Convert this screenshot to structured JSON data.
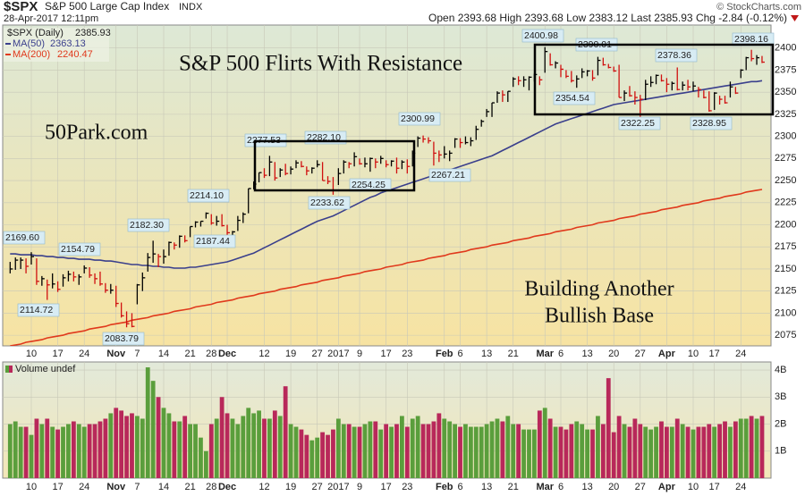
{
  "header": {
    "symbol": "$SPX",
    "name": "S&P 500 Large Cap Index",
    "exchange": "INDX",
    "source": "© StockCharts.com",
    "datetime": "28-Apr-2017 12:11pm",
    "quote": "Open 2393.68  High 2393.68  Low 2383.12  Last 2385.93  Chg -2.84 (-0.12%)"
  },
  "chart_data": [
    {
      "type": "ohlc",
      "legend_title": "$SPX (Daily)",
      "last": "2385.93",
      "up_color": "#000000",
      "down_color": "#d01010",
      "annotations": [
        "S&P 500 Flirts With Resistance",
        "50Park.com",
        "Building Another",
        "Bullish Base"
      ],
      "price_labels": [
        "2169.60",
        "2154.79",
        "2114.72",
        "2083.79",
        "2182.30",
        "2214.10",
        "2187.44",
        "2277.53",
        "2282.10",
        "2233.62",
        "2254.25",
        "2300.99",
        "2267.21",
        "2400.98",
        "2390.01",
        "2354.54",
        "2378.36",
        "2322.25",
        "2328.95",
        "2398.16"
      ],
      "categories": [
        null,
        null,
        null,
        null,
        "10",
        null,
        null,
        null,
        null,
        "17",
        null,
        null,
        null,
        null,
        "24",
        null,
        null,
        null,
        null,
        null,
        "Nov",
        null,
        null,
        null,
        "7",
        null,
        null,
        null,
        null,
        "14",
        null,
        null,
        null,
        null,
        "21",
        null,
        null,
        null,
        "28",
        null,
        null,
        "Dec",
        null,
        null,
        null,
        null,
        null,
        null,
        "12",
        null,
        null,
        null,
        null,
        "19",
        null,
        null,
        null,
        null,
        "27",
        null,
        null,
        null,
        "2017",
        null,
        null,
        null,
        "9",
        null,
        null,
        null,
        null,
        "17",
        null,
        null,
        null,
        "23",
        null,
        null,
        null,
        null,
        null,
        null,
        "Feb",
        null,
        null,
        "6",
        null,
        null,
        null,
        null,
        "13",
        null,
        null,
        null,
        null,
        "21",
        null,
        null,
        null,
        null,
        null,
        "Mar",
        null,
        null,
        "6",
        null,
        null,
        null,
        null,
        "13",
        null,
        null,
        null,
        null,
        "20",
        null,
        null,
        null,
        null,
        "27",
        null,
        null,
        null,
        null,
        "Apr",
        null,
        null,
        null,
        null,
        "10",
        null,
        null,
        null,
        "17",
        null,
        null,
        null,
        null,
        "24",
        null,
        null,
        null,
        null
      ],
      "high": [
        2158,
        2163,
        2163,
        2162,
        2169,
        2162,
        2142,
        2138,
        2145,
        2136,
        2144,
        2148,
        2147,
        2144,
        2154,
        2152,
        2145,
        2147,
        2134,
        2133,
        2131,
        2112,
        2102,
        2100,
        2133,
        2146,
        2168,
        2182,
        2167,
        2172,
        2181,
        2180,
        2188,
        2188,
        2198,
        2204,
        2204,
        2214,
        2212,
        2210,
        2212,
        2200,
        2193,
        2210,
        2214,
        2241,
        2249,
        2259,
        2264,
        2278,
        2271,
        2264,
        2269,
        2266,
        2273,
        2272,
        2266,
        2265,
        2273,
        2271,
        2255,
        2254,
        2264,
        2273,
        2271,
        2282,
        2275,
        2276,
        2276,
        2275,
        2278,
        2273,
        2273,
        2276,
        2273,
        2274,
        2284,
        2300,
        2301,
        2299,
        2294,
        2284,
        2289,
        2284,
        2298,
        2298,
        2300,
        2299,
        2312,
        2319,
        2331,
        2338,
        2351,
        2352,
        2351,
        2367,
        2368,
        2368,
        2368,
        2371,
        2368,
        2401,
        2394,
        2385,
        2381,
        2375,
        2374,
        2369,
        2377,
        2375,
        2375,
        2390,
        2389,
        2382,
        2379,
        2381,
        2352,
        2357,
        2351,
        2347,
        2364,
        2368,
        2370,
        2370,
        2366,
        2362,
        2378,
        2362,
        2364,
        2362,
        2356,
        2352,
        2351,
        2350,
        2346,
        2346,
        2362,
        2356,
        2376,
        2390,
        2398,
        2392,
        2391
      ],
      "low": [
        2145,
        2149,
        2150,
        2145,
        2155,
        2132,
        2131,
        2115,
        2128,
        2124,
        2130,
        2136,
        2136,
        2132,
        2145,
        2140,
        2133,
        2131,
        2123,
        2122,
        2107,
        2095,
        2084,
        2084,
        2110,
        2125,
        2147,
        2157,
        2152,
        2156,
        2165,
        2172,
        2174,
        2180,
        2186,
        2197,
        2198,
        2207,
        2200,
        2199,
        2198,
        2187,
        2185,
        2193,
        2202,
        2213,
        2240,
        2248,
        2253,
        2255,
        2250,
        2254,
        2256,
        2257,
        2264,
        2265,
        2256,
        2258,
        2265,
        2250,
        2246,
        2234,
        2245,
        2258,
        2264,
        2266,
        2268,
        2265,
        2260,
        2264,
        2269,
        2265,
        2266,
        2258,
        2263,
        2258,
        2266,
        2288,
        2293,
        2292,
        2267,
        2271,
        2275,
        2272,
        2287,
        2287,
        2291,
        2289,
        2296,
        2311,
        2322,
        2322,
        2338,
        2339,
        2339,
        2356,
        2358,
        2356,
        2352,
        2362,
        2358,
        2372,
        2380,
        2377,
        2367,
        2366,
        2361,
        2355,
        2366,
        2368,
        2363,
        2369,
        2380,
        2377,
        2373,
        2344,
        2340,
        2345,
        2336,
        2322,
        2341,
        2356,
        2359,
        2362,
        2350,
        2352,
        2352,
        2352,
        2352,
        2351,
        2344,
        2343,
        2328,
        2330,
        2336,
        2337,
        2344,
        2348,
        2366,
        2375,
        2385,
        2381,
        2383
      ],
      "close": [
        2150,
        2160,
        2160,
        2153,
        2164,
        2136,
        2139,
        2132,
        2133,
        2127,
        2140,
        2144,
        2141,
        2141,
        2151,
        2143,
        2139,
        2133,
        2126,
        2126,
        2111,
        2097,
        2088,
        2085,
        2132,
        2140,
        2163,
        2167,
        2164,
        2164,
        2180,
        2177,
        2187,
        2182,
        2198,
        2203,
        2204,
        2213,
        2202,
        2204,
        2199,
        2191,
        2192,
        2205,
        2212,
        2241,
        2246,
        2259,
        2256,
        2271,
        2253,
        2262,
        2258,
        2263,
        2270,
        2266,
        2261,
        2264,
        2268,
        2250,
        2249,
        2239,
        2258,
        2271,
        2269,
        2277,
        2269,
        2269,
        2275,
        2271,
        2275,
        2268,
        2272,
        2264,
        2271,
        2266,
        2281,
        2298,
        2297,
        2295,
        2281,
        2279,
        2280,
        2281,
        2297,
        2293,
        2293,
        2295,
        2308,
        2317,
        2328,
        2338,
        2349,
        2347,
        2351,
        2365,
        2363,
        2364,
        2367,
        2370,
        2364,
        2396,
        2381,
        2383,
        2376,
        2368,
        2363,
        2365,
        2373,
        2374,
        2366,
        2386,
        2381,
        2378,
        2374,
        2344,
        2349,
        2346,
        2344,
        2342,
        2359,
        2361,
        2369,
        2363,
        2359,
        2360,
        2353,
        2358,
        2356,
        2357,
        2353,
        2344,
        2329,
        2349,
        2342,
        2338,
        2356,
        2349,
        2375,
        2389,
        2388,
        2389,
        2384
      ],
      "series": [
        {
          "name": "MA(50)",
          "last": "2363.13",
          "color": "#3a3f8c",
          "values": [
            2167,
            2167,
            2166,
            2166,
            2166,
            2165,
            2165,
            2164,
            2164,
            2163,
            2163,
            2162,
            2162,
            2161,
            2161,
            2161,
            2160,
            2160,
            2159,
            2159,
            2158,
            2157,
            2156,
            2155,
            2155,
            2154,
            2154,
            2153,
            2153,
            2152,
            2152,
            2151,
            2151,
            2151,
            2152,
            2152,
            2153,
            2154,
            2155,
            2156,
            2157,
            2158,
            2160,
            2162,
            2164,
            2166,
            2168,
            2171,
            2174,
            2177,
            2180,
            2183,
            2186,
            2189,
            2192,
            2195,
            2198,
            2201,
            2204,
            2206,
            2208,
            2210,
            2213,
            2216,
            2219,
            2222,
            2225,
            2228,
            2231,
            2233,
            2236,
            2238,
            2240,
            2242,
            2244,
            2246,
            2248,
            2250,
            2252,
            2254,
            2256,
            2258,
            2260,
            2262,
            2264,
            2266,
            2268,
            2270,
            2272,
            2274,
            2276,
            2278,
            2281,
            2284,
            2287,
            2290,
            2293,
            2296,
            2299,
            2302,
            2305,
            2308,
            2311,
            2314,
            2316,
            2318,
            2320,
            2322,
            2324,
            2326,
            2328,
            2330,
            2332,
            2334,
            2336,
            2337,
            2338,
            2339,
            2340,
            2341,
            2342,
            2343,
            2344,
            2345,
            2346,
            2347,
            2348,
            2349,
            2350,
            2351,
            2352,
            2353,
            2354,
            2355,
            2356,
            2357,
            2358,
            2359,
            2360,
            2361,
            2362,
            2362,
            2363
          ]
        },
        {
          "name": "MA(200)",
          "last": "2240.47",
          "color": "#e0391c",
          "values": [
            2063,
            2064,
            2065,
            2067,
            2068,
            2069,
            2070,
            2072,
            2073,
            2074,
            2075,
            2077,
            2078,
            2079,
            2080,
            2082,
            2083,
            2084,
            2085,
            2087,
            2088,
            2089,
            2090,
            2092,
            2093,
            2094,
            2095,
            2097,
            2098,
            2099,
            2100,
            2102,
            2103,
            2104,
            2105,
            2107,
            2108,
            2109,
            2110,
            2112,
            2113,
            2114,
            2115,
            2117,
            2118,
            2119,
            2120,
            2122,
            2123,
            2124,
            2125,
            2127,
            2128,
            2129,
            2130,
            2132,
            2133,
            2134,
            2135,
            2137,
            2138,
            2139,
            2140,
            2142,
            2143,
            2144,
            2145,
            2147,
            2148,
            2149,
            2150,
            2152,
            2153,
            2154,
            2155,
            2157,
            2158,
            2159,
            2160,
            2162,
            2163,
            2164,
            2165,
            2167,
            2168,
            2169,
            2170,
            2172,
            2173,
            2174,
            2175,
            2177,
            2178,
            2179,
            2180,
            2182,
            2183,
            2184,
            2185,
            2187,
            2188,
            2189,
            2190,
            2192,
            2193,
            2194,
            2195,
            2197,
            2198,
            2199,
            2200,
            2202,
            2203,
            2204,
            2205,
            2207,
            2208,
            2209,
            2210,
            2212,
            2213,
            2214,
            2215,
            2217,
            2218,
            2219,
            2220,
            2222,
            2223,
            2224,
            2225,
            2227,
            2228,
            2229,
            2230,
            2232,
            2233,
            2234,
            2235,
            2237,
            2238,
            2239,
            2240
          ]
        }
      ],
      "ylim": [
        2063,
        2426
      ],
      "yticks": [
        2075,
        2100,
        2125,
        2150,
        2175,
        2200,
        2225,
        2250,
        2275,
        2300,
        2325,
        2350,
        2375,
        2400
      ],
      "grid": true
    },
    {
      "type": "bar",
      "title": "Volume undef",
      "up_color": "#5a9e3c",
      "down_color": "#b8285a",
      "values": [
        2.0,
        2.1,
        1.9,
        1.9,
        1.6,
        2.2,
        2.0,
        2.2,
        1.9,
        1.8,
        1.9,
        2.0,
        2.1,
        2.0,
        1.9,
        2.0,
        2.0,
        2.1,
        2.2,
        2.4,
        2.6,
        2.5,
        2.3,
        2.4,
        2.3,
        2.2,
        4.1,
        3.6,
        3.0,
        2.6,
        2.4,
        2.1,
        2.1,
        2.3,
        2.0,
        2.0,
        1.5,
        1.0,
        2.0,
        2.2,
        3.0,
        2.4,
        2.2,
        2.0,
        2.3,
        2.6,
        2.4,
        2.5,
        2.2,
        2.2,
        2.5,
        2.3,
        3.4,
        2.0,
        1.9,
        1.8,
        1.6,
        1.4,
        1.5,
        1.7,
        1.6,
        1.8,
        2.2,
        2.0,
        2.0,
        1.9,
        1.9,
        2.0,
        2.1,
        2.1,
        1.8,
        2.0,
        1.9,
        2.0,
        2.3,
        1.9,
        2.2,
        2.3,
        2.0,
        2.0,
        2.1,
        2.4,
        2.2,
        2.1,
        2.0,
        1.9,
        2.0,
        1.9,
        1.9,
        1.9,
        2.0,
        2.1,
        2.2,
        2.1,
        2.3,
        2.0,
        2.0,
        1.8,
        1.8,
        1.8,
        2.5,
        2.6,
        2.2,
        1.9,
        1.9,
        1.8,
        2.0,
        2.1,
        2.0,
        1.8,
        1.8,
        2.3,
        2.0,
        3.7,
        1.7,
        2.3,
        2.0,
        1.9,
        2.2,
        2.0,
        1.9,
        1.8,
        1.9,
        2.1,
        1.9,
        1.9,
        2.2,
        2.0,
        1.9,
        1.8,
        1.9,
        1.9,
        2.0,
        1.9,
        2.0,
        2.1,
        1.9,
        2.1,
        2.2,
        2.2,
        2.3,
        2.2,
        2.3
      ],
      "ylim": [
        0,
        4.3
      ],
      "yticks": [
        {
          "value": 1,
          "label": "1B"
        },
        {
          "value": 2,
          "label": "2B"
        },
        {
          "value": 3,
          "label": "3B"
        },
        {
          "value": 4,
          "label": "4B"
        }
      ],
      "grid": true
    }
  ]
}
